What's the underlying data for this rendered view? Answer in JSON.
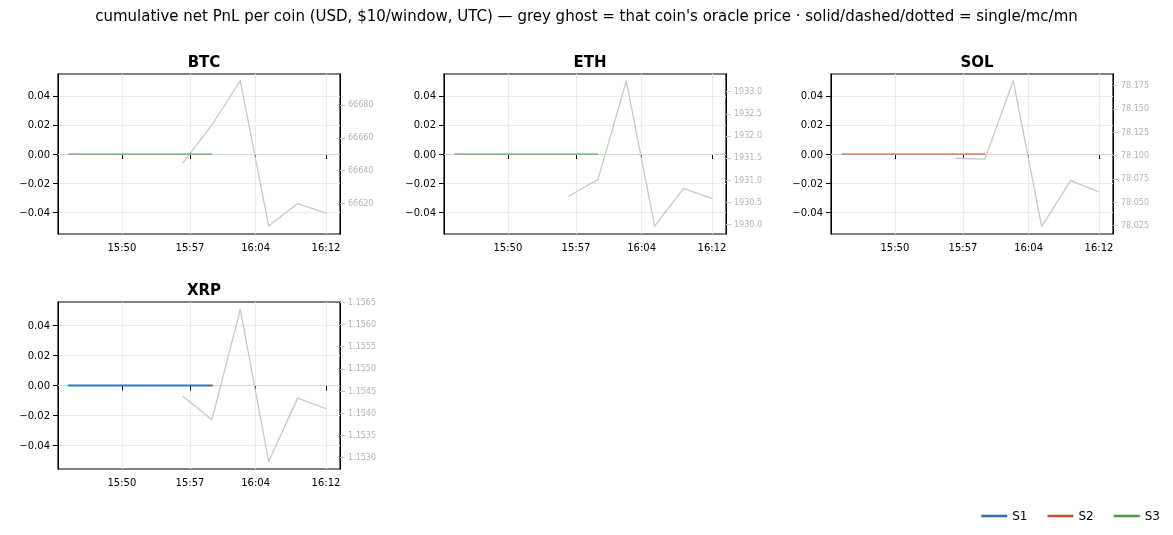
{
  "chart_data": [
    {
      "type": "line",
      "title": "BTC",
      "annotations": [
        "cumulative net PnL per coin (USD, $10/window, UTC) — grey ghost = that coin's oracle price · solid/dashed/dotted = single/mc/mn"
      ],
      "x": [
        15.738,
        15.79,
        15.841,
        15.892,
        15.943,
        15.995
      ],
      "series": [
        {
          "name": "S3",
          "color": "#4a9a4a",
          "values": [
            0,
            0,
            0,
            0,
            0,
            0
          ]
        },
        {
          "color": "#c8c8c8",
          "axis": "y2",
          "x": [
            15.943,
            15.995,
            16.046,
            16.097,
            16.149,
            16.2
          ],
          "values": [
            66644.8,
            66667.8,
            66694.7,
            66606.4,
            66620,
            66614.2
          ]
        }
      ],
      "xlim": [
        15.7186,
        16.2251
      ],
      "xticks": [
        {
          "value": 15.8333,
          "label": "15:50"
        },
        {
          "value": 15.9556,
          "label": "15:57"
        },
        {
          "value": 16.0736,
          "label": "16:04"
        },
        {
          "value": 16.2,
          "label": "16:12"
        }
      ],
      "ylim": [
        -0.055,
        0.055
      ],
      "yticks": [
        {
          "value": -0.04,
          "label": "−0.04"
        },
        {
          "value": -0.02,
          "label": "−0.02"
        },
        {
          "value": 0,
          "label": "0.00"
        },
        {
          "value": 0.02,
          "label": "0.02"
        },
        {
          "value": 0.04,
          "label": "0.04"
        }
      ],
      "y2lim": [
        66601.5,
        66698.8
      ],
      "y2ticks": [
        66620,
        66640,
        66660,
        66680
      ],
      "ref_lines": [
        {
          "axis": "y",
          "value": 0,
          "color": "#d4d4d4"
        }
      ],
      "grid": true,
      "marker": "none",
      "line_style": "solid"
    },
    {
      "type": "line",
      "title": "ETH",
      "x": [
        15.738,
        15.79,
        15.841,
        15.892,
        15.943,
        15.995
      ],
      "series": [
        {
          "color": "#4a9a4a",
          "values": [
            0,
            0,
            0,
            0,
            0,
            0
          ]
        },
        {
          "color": "#c8c8c8",
          "axis": "y2",
          "x": [
            15.943,
            15.995,
            16.046,
            16.097,
            16.149,
            16.2
          ],
          "values": [
            1930.64,
            1931.01,
            1933.24,
            1929.96,
            1930.81,
            1930.58
          ]
        }
      ],
      "xlim": [
        15.7186,
        16.2251
      ],
      "xticks": [
        {
          "value": 15.8333,
          "label": "15:50"
        },
        {
          "value": 15.9556,
          "label": "15:57"
        },
        {
          "value": 16.0736,
          "label": "16:04"
        },
        {
          "value": 16.2,
          "label": "16:12"
        }
      ],
      "ylim": [
        -0.055,
        0.055
      ],
      "yticks": [
        {
          "value": -0.04,
          "label": "−0.04"
        },
        {
          "value": -0.02,
          "label": "−0.02"
        },
        {
          "value": 0,
          "label": "0.00"
        },
        {
          "value": 0.02,
          "label": "0.02"
        },
        {
          "value": 0.04,
          "label": "0.04"
        }
      ],
      "y2lim": [
        1929.78,
        1933.4
      ],
      "y2ticks": [
        {
          "value": 1930,
          "label": "1930.0"
        },
        1930.5,
        {
          "value": 1931,
          "label": "1931.0"
        },
        1931.5,
        {
          "value": 1932,
          "label": "1932.0"
        },
        1932.5,
        {
          "value": 1933,
          "label": "1933.0"
        }
      ],
      "ref_lines": [
        {
          "axis": "y",
          "value": 0,
          "color": "#d4d4d4"
        }
      ],
      "grid": true,
      "marker": "none",
      "line_style": "solid"
    },
    {
      "type": "line",
      "title": "SOL",
      "x": [
        15.738,
        15.79,
        15.841,
        15.892,
        15.943,
        15.995
      ],
      "series": [
        {
          "color": "#c0522a",
          "values": [
            0,
            0,
            0,
            0,
            0,
            0
          ]
        },
        {
          "color": "#c8c8c8",
          "axis": "y2",
          "x": [
            15.943,
            15.995,
            16.046,
            16.097,
            16.149,
            16.2
          ],
          "values": [
            78.097,
            78.096,
            78.18,
            78.024,
            78.073,
            78.061
          ]
        }
      ],
      "xlim": [
        15.7186,
        16.2251
      ],
      "xticks": [
        {
          "value": 15.8333,
          "label": "15:50"
        },
        {
          "value": 15.9556,
          "label": "15:57"
        },
        {
          "value": 16.0736,
          "label": "16:04"
        },
        {
          "value": 16.2,
          "label": "16:12"
        }
      ],
      "ylim": [
        -0.055,
        0.055
      ],
      "yticks": [
        {
          "value": -0.04,
          "label": "−0.04"
        },
        {
          "value": -0.02,
          "label": "−0.02"
        },
        {
          "value": 0,
          "label": "0.00"
        },
        {
          "value": 0.02,
          "label": "0.02"
        },
        {
          "value": 0.04,
          "label": "0.04"
        }
      ],
      "y2lim": [
        78.0158,
        78.1873
      ],
      "y2ticks": [
        78.025,
        {
          "value": 78.05,
          "label": "78.050"
        },
        78.075,
        {
          "value": 78.1,
          "label": "78.100"
        },
        78.125,
        {
          "value": 78.15,
          "label": "78.150"
        },
        78.175
      ],
      "ref_lines": [
        {
          "axis": "y",
          "value": 0,
          "color": "#d4d4d4"
        }
      ],
      "grid": true,
      "marker": "none",
      "line_style": "solid"
    },
    {
      "type": "line",
      "title": "XRP",
      "x": [
        15.738,
        15.79,
        15.841,
        15.892,
        15.943,
        15.995
      ],
      "series": [
        {
          "name": "S1",
          "color": "#2f6db5",
          "values": [
            0,
            0,
            0,
            0,
            0,
            0
          ]
        },
        {
          "name": "S2",
          "color": "#c0522a",
          "values": [
            0,
            0,
            0,
            0,
            0,
            0
          ]
        },
        {
          "color": "#c8c8c8",
          "axis": "y2",
          "x": [
            15.943,
            15.995,
            16.046,
            16.097,
            16.149,
            16.2
          ],
          "values": [
            1.15438,
            1.15385,
            1.15634,
            1.15291,
            1.15434,
            1.1541
          ]
        }
      ],
      "xlim": [
        15.7186,
        16.2251
      ],
      "xticks": [
        {
          "value": 15.8333,
          "label": "15:50"
        },
        {
          "value": 15.9556,
          "label": "15:57"
        },
        {
          "value": 16.0736,
          "label": "16:04"
        },
        {
          "value": 16.2,
          "label": "16:12"
        }
      ],
      "ylim": [
        -0.0555,
        0.0555
      ],
      "yticks": [
        {
          "value": -0.04,
          "label": "−0.04"
        },
        {
          "value": -0.02,
          "label": "−0.02"
        },
        {
          "value": 0,
          "label": "0.00"
        },
        {
          "value": 0.02,
          "label": "0.02"
        },
        {
          "value": 0.04,
          "label": "0.04"
        }
      ],
      "y2lim": [
        1.15274,
        1.15651
      ],
      "y2ticks": [
        {
          "value": 1.153,
          "label": "1.1530"
        },
        1.1535,
        {
          "value": 1.154,
          "label": "1.1540"
        },
        1.1545,
        {
          "value": 1.155,
          "label": "1.1550"
        },
        1.1555,
        {
          "value": 1.156,
          "label": "1.1560"
        },
        1.1565
      ],
      "ref_lines": [
        {
          "axis": "y",
          "value": 0,
          "color": "#d4d4d4"
        }
      ],
      "grid": true,
      "marker": "none",
      "line_style": "solid",
      "legend": "bottom right"
    }
  ]
}
